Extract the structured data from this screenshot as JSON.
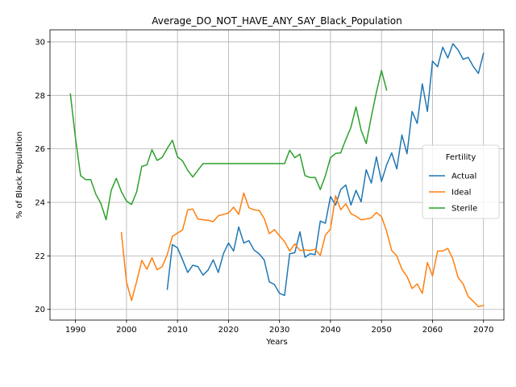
{
  "colors": {
    "Actual": "#1f77b4",
    "Ideal": "#ff7f0e",
    "Sterile": "#2ca02c",
    "grid": "#b0b0b0",
    "axis": "#000000"
  },
  "chart_data": {
    "type": "line",
    "title": "Average_DO_NOT_HAVE_ANY_SAY_Black_Population",
    "xlabel": "Years",
    "ylabel": "% of Black Population",
    "xlim": [
      1985,
      2074
    ],
    "ylim": [
      19.6,
      30.45
    ],
    "xticks": [
      1990,
      2000,
      2010,
      2020,
      2030,
      2040,
      2050,
      2060,
      2070
    ],
    "yticks": [
      20,
      22,
      24,
      26,
      28,
      30
    ],
    "grid": true,
    "legend": {
      "title": "Fertility",
      "placement": "right",
      "entries": [
        "Actual",
        "Ideal",
        "Sterile"
      ]
    },
    "series": [
      {
        "name": "Actual",
        "x": [
          2008,
          2009,
          2010,
          2011,
          2012,
          2013,
          2014,
          2015,
          2016,
          2017,
          2018,
          2019,
          2020,
          2021,
          2022,
          2023,
          2024,
          2025,
          2026,
          2027,
          2028,
          2029,
          2030,
          2031,
          2032,
          2033,
          2034,
          2035,
          2036,
          2037,
          2038,
          2039,
          2040,
          2041,
          2042,
          2043,
          2044,
          2045,
          2046,
          2047,
          2048,
          2049,
          2050,
          2051,
          2052,
          2053,
          2054,
          2055,
          2056,
          2057,
          2058,
          2059,
          2060,
          2061,
          2062,
          2063,
          2064,
          2065,
          2066,
          2067,
          2068,
          2069,
          2070
        ],
        "values": [
          20.75,
          22.42,
          22.3,
          21.85,
          21.38,
          21.65,
          21.6,
          21.28,
          21.47,
          21.85,
          21.38,
          22.08,
          22.48,
          22.18,
          23.08,
          22.48,
          22.57,
          22.22,
          22.08,
          21.85,
          21.03,
          20.93,
          20.6,
          20.52,
          22.08,
          22.12,
          22.9,
          21.95,
          22.08,
          22.05,
          23.3,
          23.22,
          24.22,
          23.9,
          24.48,
          24.65,
          23.9,
          24.45,
          24.02,
          25.22,
          24.72,
          25.7,
          24.78,
          25.4,
          25.85,
          25.25,
          26.52,
          25.82,
          27.4,
          26.95,
          28.43,
          27.4,
          29.28,
          29.07,
          29.8,
          29.4,
          29.93,
          29.7,
          29.35,
          29.42,
          29.08,
          28.82,
          29.57
        ]
      },
      {
        "name": "Ideal",
        "x": [
          1999,
          2000,
          2001,
          2002,
          2003,
          2004,
          2005,
          2006,
          2007,
          2008,
          2009,
          2010,
          2011,
          2012,
          2013,
          2014,
          2015,
          2016,
          2017,
          2018,
          2019,
          2020,
          2021,
          2022,
          2023,
          2024,
          2025,
          2026,
          2027,
          2028,
          2029,
          2030,
          2031,
          2032,
          2033,
          2034,
          2035,
          2036,
          2037,
          2038,
          2039,
          2040,
          2041,
          2042,
          2043,
          2044,
          2045,
          2046,
          2047,
          2048,
          2049,
          2050,
          2051,
          2052,
          2053,
          2054,
          2055,
          2056,
          2057,
          2058,
          2059,
          2060,
          2061,
          2062,
          2063,
          2064,
          2065,
          2066,
          2067,
          2068,
          2069,
          2070
        ],
        "values": [
          22.87,
          21.02,
          20.33,
          21.05,
          21.83,
          21.5,
          21.93,
          21.48,
          21.6,
          22.05,
          22.73,
          22.85,
          22.97,
          23.72,
          23.75,
          23.38,
          23.35,
          23.33,
          23.28,
          23.5,
          23.55,
          23.6,
          23.82,
          23.55,
          24.35,
          23.8,
          23.72,
          23.7,
          23.4,
          22.83,
          22.98,
          22.75,
          22.53,
          22.18,
          22.45,
          22.2,
          22.22,
          22.2,
          22.25,
          22.02,
          22.78,
          23.0,
          24.25,
          23.72,
          23.95,
          23.58,
          23.48,
          23.35,
          23.38,
          23.42,
          23.62,
          23.47,
          22.92,
          22.2,
          22.0,
          21.5,
          21.23,
          20.78,
          20.95,
          20.6,
          21.75,
          21.25,
          22.18,
          22.18,
          22.28,
          21.88,
          21.2,
          20.95,
          20.48,
          20.3,
          20.1,
          20.15
        ]
      },
      {
        "name": "Sterile",
        "x": [
          1989,
          1990,
          1991,
          1992,
          1993,
          1994,
          1995,
          1996,
          1997,
          1998,
          1999,
          2000,
          2001,
          2002,
          2003,
          2004,
          2005,
          2006,
          2007,
          2008,
          2009,
          2010,
          2011,
          2012,
          2013,
          2014,
          2015,
          2016,
          2017,
          2018,
          2019,
          2020,
          2021,
          2022,
          2023,
          2024,
          2025,
          2026,
          2027,
          2028,
          2029,
          2030,
          2031,
          2032,
          2033,
          2034,
          2035,
          2036,
          2037,
          2038,
          2039,
          2040,
          2041,
          2042,
          2043,
          2044,
          2045,
          2046,
          2047,
          2048,
          2049,
          2050,
          2051
        ],
        "values": [
          28.05,
          26.4,
          25.0,
          24.85,
          24.85,
          24.3,
          23.95,
          23.35,
          24.45,
          24.9,
          24.4,
          24.05,
          23.92,
          24.4,
          25.35,
          25.4,
          25.97,
          25.57,
          25.68,
          26.02,
          26.32,
          25.7,
          25.55,
          25.2,
          24.95,
          25.2,
          25.45,
          25.45,
          25.45,
          25.45,
          25.45,
          25.45,
          25.45,
          25.45,
          25.45,
          25.45,
          25.45,
          25.45,
          25.45,
          25.45,
          25.45,
          25.45,
          25.45,
          25.95,
          25.67,
          25.8,
          25.0,
          24.93,
          24.93,
          24.48,
          25.0,
          25.67,
          25.83,
          25.85,
          26.35,
          26.8,
          27.57,
          26.7,
          26.2,
          27.2,
          28.12,
          28.93,
          28.2
        ]
      }
    ]
  }
}
